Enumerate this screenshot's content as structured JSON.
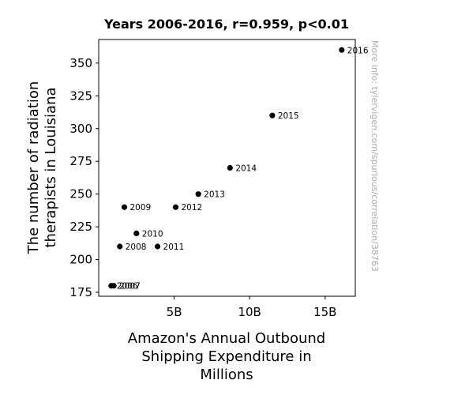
{
  "chart_data": {
    "type": "scatter",
    "title": "Years 2006-2016, r=0.959, p<0.01",
    "xlabel": [
      "Amazon's Annual Outbound",
      "Shipping Expenditure in",
      "Millions"
    ],
    "ylabel": [
      "The number of radiation",
      "therapists in Louisiana"
    ],
    "watermark": "More info: tylervigen.com/spurious/correlation/38763",
    "xlim": [
      0,
      17000
    ],
    "ylim": [
      172,
      368
    ],
    "xticks": [
      {
        "value": 5000,
        "label": "5B"
      },
      {
        "value": 10000,
        "label": "10B"
      },
      {
        "value": 15000,
        "label": "15B"
      }
    ],
    "yticks": [
      {
        "value": 175,
        "label": "175"
      },
      {
        "value": 200,
        "label": "200"
      },
      {
        "value": 225,
        "label": "225"
      },
      {
        "value": 250,
        "label": "250"
      },
      {
        "value": 275,
        "label": "275"
      },
      {
        "value": 300,
        "label": "300"
      },
      {
        "value": 325,
        "label": "325"
      },
      {
        "value": 350,
        "label": "350"
      }
    ],
    "points": [
      {
        "x": 830,
        "y": 180,
        "label": "2006"
      },
      {
        "x": 1000,
        "y": 180,
        "label": "2007"
      },
      {
        "x": 1400,
        "y": 210,
        "label": "2008"
      },
      {
        "x": 1700,
        "y": 240,
        "label": "2009"
      },
      {
        "x": 2500,
        "y": 220,
        "label": "2010"
      },
      {
        "x": 3900,
        "y": 210,
        "label": "2011"
      },
      {
        "x": 5100,
        "y": 240,
        "label": "2012"
      },
      {
        "x": 6600,
        "y": 250,
        "label": "2013"
      },
      {
        "x": 8700,
        "y": 270,
        "label": "2014"
      },
      {
        "x": 11500,
        "y": 310,
        "label": "2015"
      },
      {
        "x": 16100,
        "y": 360,
        "label": "2016"
      }
    ],
    "marker_color": "#000000",
    "watermark_color": "#aaaaaa"
  }
}
